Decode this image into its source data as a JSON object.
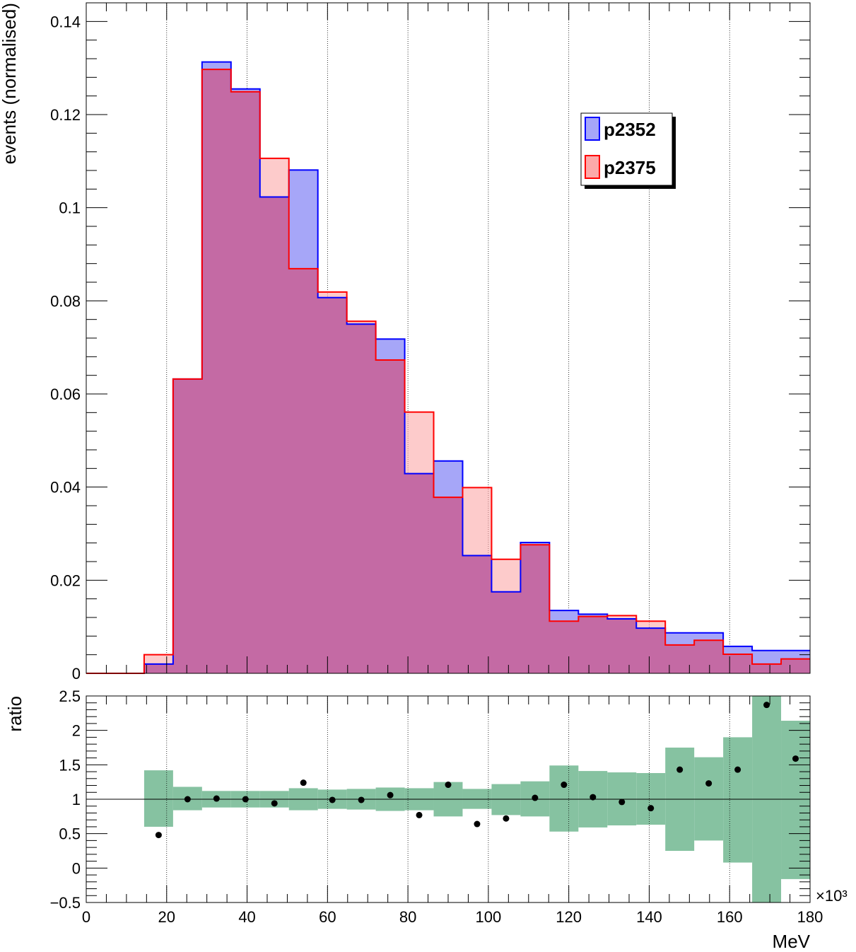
{
  "chart_data": [
    {
      "type": "histogram",
      "ylabel": "events (normalised)",
      "xlim": [
        0,
        180
      ],
      "ylim": [
        0,
        0.144
      ],
      "x_multiplier": "×10³",
      "grid": "vertical dotted",
      "legend_placement": "top-right",
      "bin_edges": [
        0,
        7.2,
        14.4,
        21.6,
        28.8,
        36.0,
        43.2,
        50.4,
        57.6,
        64.8,
        72.0,
        79.2,
        86.4,
        93.6,
        100.8,
        108.0,
        115.2,
        122.4,
        129.6,
        136.8,
        144.0,
        151.2,
        158.4,
        165.6,
        172.8,
        180.0
      ],
      "series": [
        {
          "name": "p2352",
          "line_color": "#0000ff",
          "fill_color": "#a6a6f8",
          "values": [
            0,
            0,
            0.002,
            0.0632,
            0.1313,
            0.1255,
            0.1023,
            0.1081,
            0.0807,
            0.075,
            0.0718,
            0.0429,
            0.0456,
            0.0253,
            0.0175,
            0.0281,
            0.0135,
            0.0127,
            0.0117,
            0.0097,
            0.0087,
            0.0087,
            0.0058,
            0.0049,
            0.0049
          ]
        },
        {
          "name": "p2375",
          "line_color": "#ff0000",
          "fill_color": "#fca9a9",
          "values": [
            0,
            0,
            0.004,
            0.0632,
            0.1297,
            0.1249,
            0.1106,
            0.0869,
            0.0819,
            0.0756,
            0.0673,
            0.0561,
            0.0378,
            0.0399,
            0.0245,
            0.0276,
            0.0112,
            0.0122,
            0.0124,
            0.0112,
            0.0061,
            0.0071,
            0.0041,
            0.002,
            0.0031
          ]
        }
      ],
      "yticks": [
        "0",
        "0.02",
        "0.04",
        "0.06",
        "0.08",
        "0.1",
        "0.12",
        "0.14"
      ]
    },
    {
      "type": "scatter",
      "ylabel": "ratio",
      "xlabel": "MeV",
      "xlim": [
        0,
        180
      ],
      "ylim": [
        -0.5,
        2.5
      ],
      "reference_line": 1,
      "band_color": "#86c2a1",
      "band": [
        {
          "x0": 14.4,
          "x1": 21.6,
          "lo": 0.6,
          "hi": 1.42
        },
        {
          "x0": 21.6,
          "x1": 28.8,
          "lo": 0.84,
          "hi": 1.18
        },
        {
          "x0": 28.8,
          "x1": 36.0,
          "lo": 0.88,
          "hi": 1.12
        },
        {
          "x0": 36.0,
          "x1": 43.2,
          "lo": 0.88,
          "hi": 1.12
        },
        {
          "x0": 43.2,
          "x1": 50.4,
          "lo": 0.88,
          "hi": 1.12
        },
        {
          "x0": 50.4,
          "x1": 57.6,
          "lo": 0.84,
          "hi": 1.16
        },
        {
          "x0": 57.6,
          "x1": 64.8,
          "lo": 0.86,
          "hi": 1.14
        },
        {
          "x0": 64.8,
          "x1": 72.0,
          "lo": 0.85,
          "hi": 1.15
        },
        {
          "x0": 72.0,
          "x1": 79.2,
          "lo": 0.83,
          "hi": 1.17
        },
        {
          "x0": 79.2,
          "x1": 86.4,
          "lo": 0.84,
          "hi": 1.16
        },
        {
          "x0": 86.4,
          "x1": 93.6,
          "lo": 0.75,
          "hi": 1.25
        },
        {
          "x0": 93.6,
          "x1": 100.8,
          "lo": 0.86,
          "hi": 1.15
        },
        {
          "x0": 100.8,
          "x1": 108.0,
          "lo": 0.77,
          "hi": 1.22
        },
        {
          "x0": 108.0,
          "x1": 115.2,
          "lo": 0.75,
          "hi": 1.26
        },
        {
          "x0": 115.2,
          "x1": 122.4,
          "lo": 0.53,
          "hi": 1.49
        },
        {
          "x0": 122.4,
          "x1": 129.6,
          "lo": 0.59,
          "hi": 1.41
        },
        {
          "x0": 129.6,
          "x1": 136.8,
          "lo": 0.62,
          "hi": 1.39
        },
        {
          "x0": 136.8,
          "x1": 144.0,
          "lo": 0.63,
          "hi": 1.38
        },
        {
          "x0": 144.0,
          "x1": 151.2,
          "lo": 0.25,
          "hi": 1.75
        },
        {
          "x0": 151.2,
          "x1": 158.4,
          "lo": 0.4,
          "hi": 1.61
        },
        {
          "x0": 158.4,
          "x1": 165.6,
          "lo": 0.08,
          "hi": 1.9
        },
        {
          "x0": 165.6,
          "x1": 172.8,
          "lo": -0.5,
          "hi": 2.5
        },
        {
          "x0": 172.8,
          "x1": 180.0,
          "lo": -0.16,
          "hi": 2.14
        }
      ],
      "points": [
        {
          "x": 18.0,
          "y": 0.48
        },
        {
          "x": 25.2,
          "y": 1.0
        },
        {
          "x": 32.4,
          "y": 1.01
        },
        {
          "x": 39.6,
          "y": 1.0
        },
        {
          "x": 46.8,
          "y": 0.94
        },
        {
          "x": 54.0,
          "y": 1.24
        },
        {
          "x": 61.2,
          "y": 0.99
        },
        {
          "x": 68.4,
          "y": 0.99
        },
        {
          "x": 75.6,
          "y": 1.06
        },
        {
          "x": 82.8,
          "y": 0.77
        },
        {
          "x": 90.0,
          "y": 1.21
        },
        {
          "x": 97.2,
          "y": 0.64
        },
        {
          "x": 104.4,
          "y": 0.72
        },
        {
          "x": 111.6,
          "y": 1.02
        },
        {
          "x": 118.8,
          "y": 1.21
        },
        {
          "x": 126.0,
          "y": 1.03
        },
        {
          "x": 133.2,
          "y": 0.96
        },
        {
          "x": 140.4,
          "y": 0.87
        },
        {
          "x": 147.6,
          "y": 1.43
        },
        {
          "x": 154.8,
          "y": 1.23
        },
        {
          "x": 162.0,
          "y": 1.43
        },
        {
          "x": 169.2,
          "y": 2.37
        },
        {
          "x": 176.4,
          "y": 1.59
        }
      ],
      "yticks": [
        "−0.5",
        "0",
        "0.5",
        "1",
        "1.5",
        "2",
        "2.5"
      ],
      "xticks": [
        "0",
        "20",
        "40",
        "60",
        "80",
        "100",
        "120",
        "140",
        "160",
        "180"
      ]
    }
  ]
}
